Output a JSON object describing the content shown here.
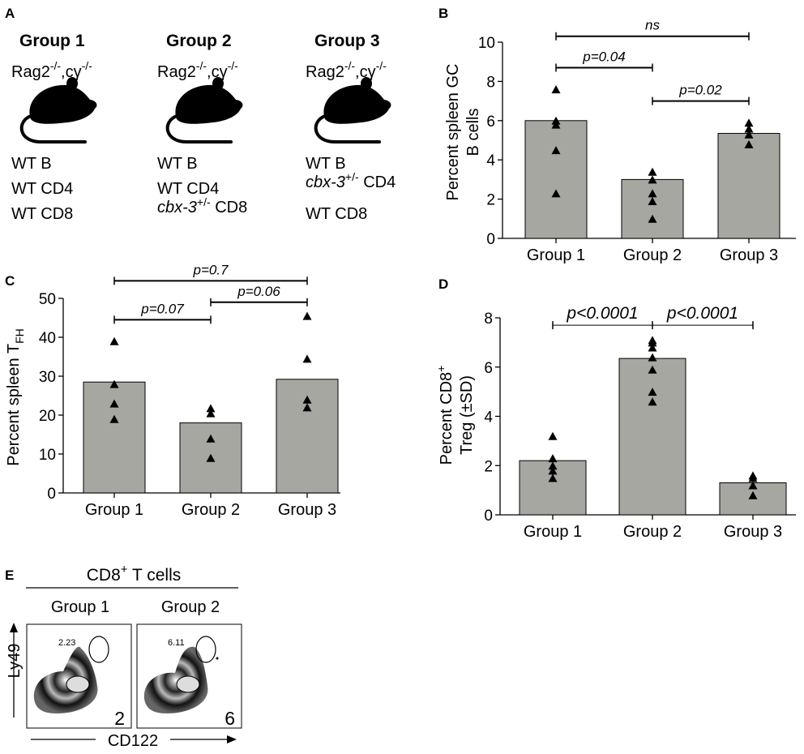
{
  "panel_letters": {
    "a": "A",
    "b": "B",
    "c": "C",
    "d": "D",
    "e": "E"
  },
  "panel_a": {
    "groups": [
      {
        "title": "Group 1",
        "strain": "Rag2",
        "strain_sup1": "-/-",
        "strain_mid": ",cγ",
        "strain_sup2": "-/-",
        "cells": [
          {
            "italic": "",
            "sup": "",
            "text": "WT B"
          },
          {
            "italic": "",
            "sup": "",
            "text": "WT CD4"
          },
          {
            "italic": "",
            "sup": "",
            "text": "WT CD8"
          }
        ]
      },
      {
        "title": "Group 2",
        "strain": "Rag2",
        "strain_sup1": "-/-",
        "strain_mid": ",cγ",
        "strain_sup2": "-/-",
        "cells": [
          {
            "italic": "",
            "sup": "",
            "text": "WT B"
          },
          {
            "italic": "",
            "sup": "",
            "text": "WT CD4"
          },
          {
            "italic": "cbx-3",
            "sup": "+/-",
            "text": " CD8"
          }
        ]
      },
      {
        "title": "Group 3",
        "strain": "Rag2",
        "strain_sup1": "-/-",
        "strain_mid": ",cγ",
        "strain_sup2": "-/-",
        "cells": [
          {
            "italic": "",
            "sup": "",
            "text": "WT B"
          },
          {
            "italic": "cbx-3",
            "sup": "+/-",
            "text": " CD4"
          },
          {
            "italic": "",
            "sup": "",
            "text": "WT CD8"
          }
        ]
      }
    ]
  },
  "panel_e": {
    "header_main": "CD8",
    "header_sup": "+",
    "header_tail": " T cells",
    "plots": [
      {
        "group": "Group 1",
        "gate_value": "2.23",
        "corner_value": "2"
      },
      {
        "group": "Group 2",
        "gate_value": "6.11",
        "corner_value": "6"
      }
    ],
    "y_axis_label": "Ly49",
    "x_axis_label": "CD122"
  },
  "chart_data": [
    {
      "id": "B",
      "type": "bar",
      "categories": [
        "Group 1",
        "Group 2",
        "Group 3"
      ],
      "values": [
        6.0,
        3.0,
        5.35
      ],
      "points": [
        [
          7.6,
          6.0,
          5.8,
          4.5,
          2.3
        ],
        [
          3.4,
          3.0,
          2.3,
          1.9,
          1.0
        ],
        [
          5.9,
          5.6,
          5.3,
          4.8
        ]
      ],
      "ylabel_line1": "Percent spleen GC",
      "ylabel_line2": "B cells",
      "ylim": [
        0,
        10
      ],
      "yticks": [
        "0",
        "2",
        "4",
        "6",
        "8",
        "10"
      ],
      "comparisons": [
        {
          "from": 0,
          "to": 2,
          "label": "ns",
          "level": 10.3
        },
        {
          "from": 0,
          "to": 1,
          "label": "p=0.04",
          "level": 8.7
        },
        {
          "from": 1,
          "to": 2,
          "label": "p=0.02",
          "level": 7.0
        }
      ]
    },
    {
      "id": "C",
      "type": "bar",
      "categories": [
        "Group 1",
        "Group 2",
        "Group 3"
      ],
      "values": [
        28.5,
        18.0,
        29.2
      ],
      "points": [
        [
          39,
          28,
          23,
          19
        ],
        [
          21.8,
          20.5,
          14,
          9
        ],
        [
          45.5,
          34.5,
          24,
          22
        ]
      ],
      "ylabel_main": "Percent spleen T",
      "ylabel_sub": "FH",
      "ylim": [
        0,
        50
      ],
      "yticks": [
        "0",
        "10",
        "20",
        "30",
        "40",
        "50"
      ],
      "comparisons": [
        {
          "from": 0,
          "to": 2,
          "label": "p=0.7",
          "level": 54.5
        },
        {
          "from": 0,
          "to": 1,
          "label": "p=0.07",
          "level": 44.5
        },
        {
          "from": 1,
          "to": 2,
          "label": "p=0.06",
          "level": 49.0
        }
      ]
    },
    {
      "id": "D",
      "type": "bar",
      "categories": [
        "Group 1",
        "Group 2",
        "Group 3"
      ],
      "values": [
        2.2,
        6.35,
        1.3
      ],
      "points": [
        [
          3.2,
          2.3,
          2.0,
          1.8,
          1.5
        ],
        [
          7.1,
          7.0,
          6.8,
          6.4,
          5.9,
          5.0,
          4.6
        ],
        [
          1.6,
          1.5,
          1.2,
          0.8
        ]
      ],
      "ylabel_line1": "Percent CD8",
      "ylabel_sup": "+",
      "ylabel_line2": "Treg (±SD)",
      "ylim": [
        0,
        8
      ],
      "yticks": [
        "0",
        "2",
        "4",
        "6",
        "8"
      ],
      "comparisons": [
        {
          "from": 0,
          "to": 2,
          "label_left": "p<0.0001",
          "label_right": "p<0.0001",
          "level": 7.7
        }
      ]
    }
  ]
}
